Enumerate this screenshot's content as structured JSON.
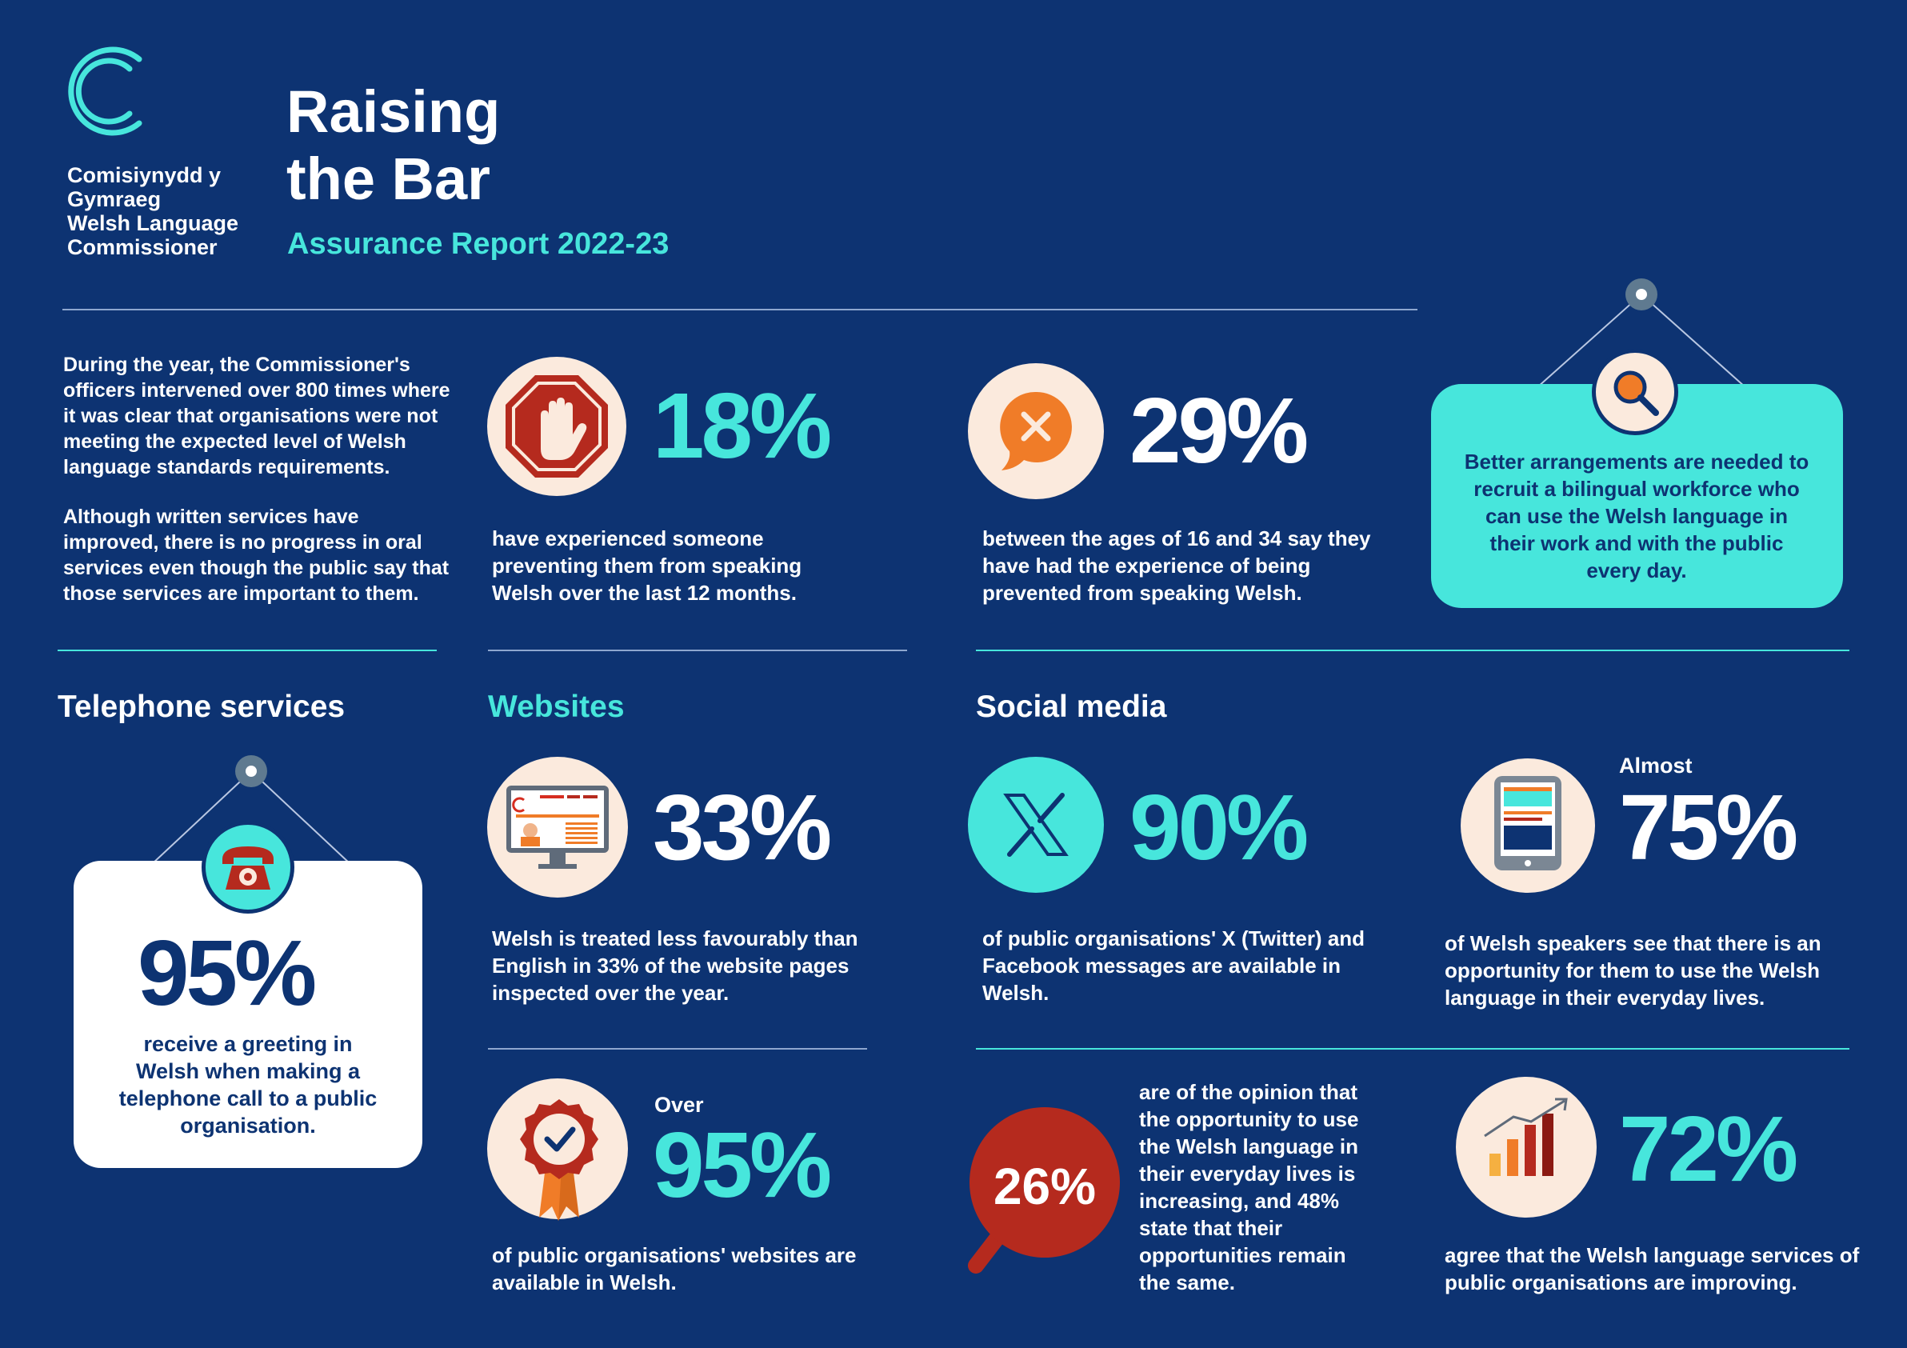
{
  "header": {
    "org_lines": [
      "Comisiynydd y",
      "Gymraeg",
      "Welsh Language",
      "Commissioner"
    ],
    "title_line1": "Raising",
    "title_line2": "the Bar",
    "subtitle": "Assurance Report 2022-23"
  },
  "intro": {
    "para1": "During the year, the Commissioner's officers intervened over 800 times where it was clear that organisations were not meeting the expected level of Welsh language standards requirements.",
    "para2": "Although written services have improved, there is no progress in oral services even though the public say that those services are important to them."
  },
  "stats": {
    "s18": {
      "value": "18%",
      "text": "have experienced someone preventing them from speaking Welsh over the last 12 months."
    },
    "s29": {
      "value": "29%",
      "text": "between the ages of 16 and 34 say they have had the experience of being prevented from speaking Welsh."
    },
    "callout": {
      "text": "Better arrangements are needed to recruit a bilingual workforce who can use the Welsh language in their work and with the public every day."
    }
  },
  "telephone": {
    "heading": "Telephone services",
    "value": "95%",
    "text": "receive a greeting in Welsh when making a telephone call to a public organisation."
  },
  "websites": {
    "heading": "Websites",
    "s33": {
      "value": "33%",
      "text": "Welsh is treated less favourably than English in 33% of the website pages inspected over the year."
    },
    "s95": {
      "prefix": "Over",
      "value": "95%",
      "text": "of public organisations' websites are available in Welsh."
    }
  },
  "social": {
    "heading": "Social media",
    "s90": {
      "value": "90%",
      "text": "of public organisations' X (Twitter) and Facebook messages are available in Welsh."
    },
    "s75": {
      "prefix": "Almost",
      "value": "75%",
      "text": "of Welsh speakers see that there is an opportunity for them to use the Welsh language in their everyday lives."
    },
    "s26": {
      "value": "26%",
      "text": "are of the opinion that the opportunity to use the Welsh language in their everyday lives is increasing, and 48% state that their opportunities remain the same."
    },
    "s72": {
      "value": "72%",
      "text": "agree that the Welsh language services of public organisations are improving."
    }
  },
  "icons": {
    "logo": "commissioner-c-logo",
    "stop": "stop-hand-icon",
    "speech_x": "speech-bubble-x-icon",
    "magnifier": "magnifier-icon",
    "phone": "telephone-icon",
    "monitor": "website-monitor-icon",
    "x_logo": "x-logo-icon",
    "tablet": "tablet-icon",
    "rosette": "rosette-check-icon",
    "growth": "growth-chart-icon"
  },
  "colors": {
    "background": "#0d3372",
    "teal": "#47e6dc",
    "cream": "#fbeadd",
    "red": "#b52a1e",
    "orange": "#f07c28",
    "navy_text": "#0d3372"
  }
}
